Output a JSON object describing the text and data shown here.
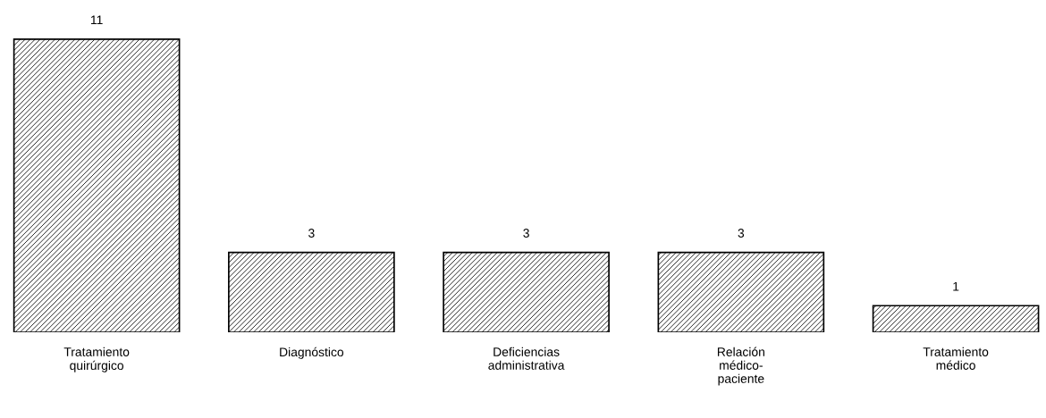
{
  "chart_data": {
    "type": "bar",
    "categories": [
      "Tratamiento\nquirúrgico",
      "Diagnóstico",
      "Deficiencias\nadministrativa",
      "Relación\nmédico-\npaciente",
      "Tratamiento\nmédico"
    ],
    "values": [
      11,
      3,
      3,
      3,
      1
    ],
    "color": "#000000",
    "data_labels": true,
    "tick_labels": "x"
  }
}
